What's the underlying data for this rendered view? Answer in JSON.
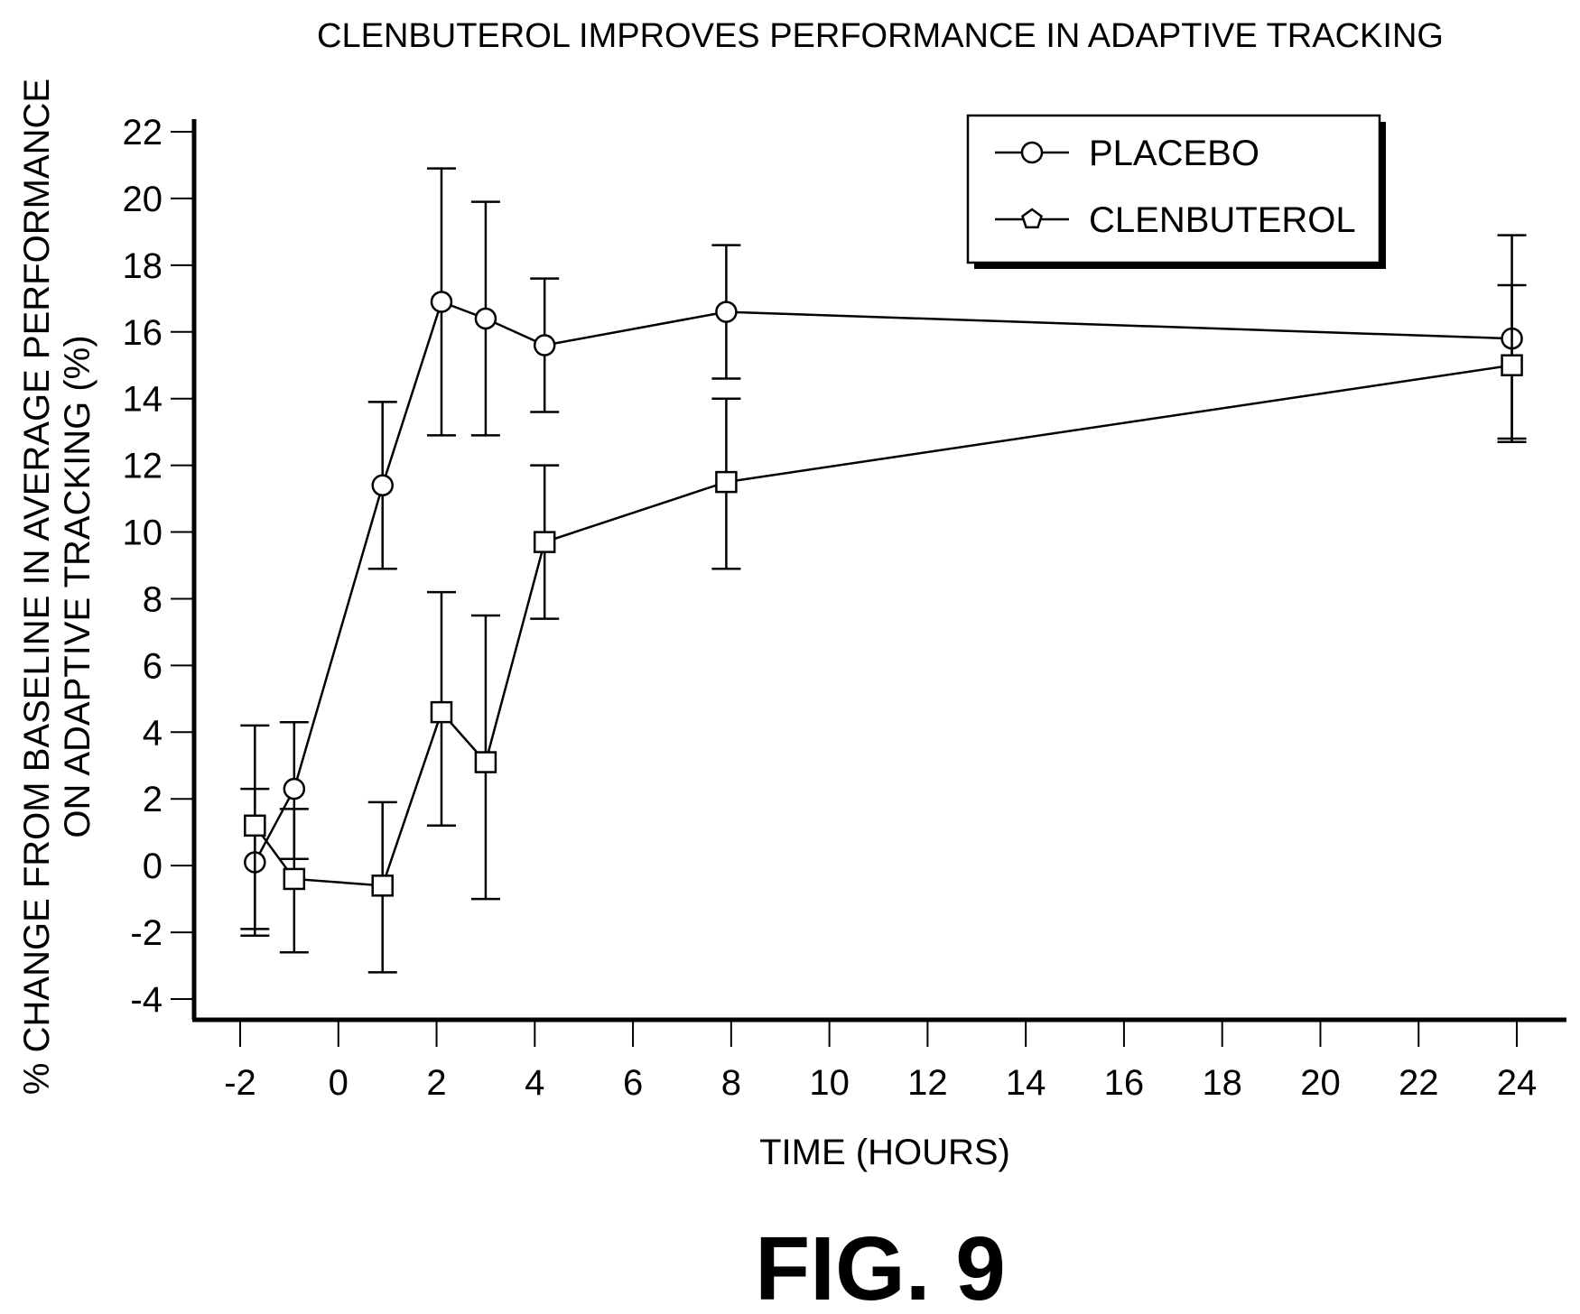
{
  "chart_data": {
    "type": "line",
    "title": "CLENBUTEROL IMPROVES PERFORMANCE IN ADAPTIVE TRACKING",
    "xlabel": "TIME (HOURS)",
    "ylabel_lines": [
      "% CHANGE FROM BASELINE IN AVERAGE PERFORMANCE",
      "ON ADAPTIVE TRACKING (%)"
    ],
    "xlim": [
      -3,
      25
    ],
    "ylim": [
      -5,
      23
    ],
    "xticks": [
      -2,
      0,
      2,
      4,
      6,
      8,
      10,
      12,
      14,
      16,
      18,
      20,
      22,
      24
    ],
    "yticks": [
      -4,
      -2,
      0,
      2,
      4,
      6,
      8,
      10,
      12,
      14,
      16,
      18,
      20,
      22
    ],
    "grid": false,
    "legend_position": "top-right",
    "series": [
      {
        "name": "PLACEBO",
        "marker": "circle",
        "x": [
          -1.7,
          -0.9,
          0.9,
          2.1,
          3.0,
          4.2,
          7.9,
          23.9
        ],
        "y": [
          0.1,
          2.3,
          11.4,
          16.9,
          16.4,
          15.6,
          16.6,
          15.8
        ],
        "error_low": [
          -2.1,
          0.2,
          8.9,
          12.9,
          12.9,
          13.6,
          14.6,
          12.7
        ],
        "error_high": [
          2.3,
          4.3,
          13.9,
          20.9,
          19.9,
          17.6,
          18.6,
          18.9
        ]
      },
      {
        "name": "CLENBUTEROL",
        "legend_marker": "pentagon",
        "marker": "square",
        "x": [
          -1.7,
          -0.9,
          0.9,
          2.1,
          3.0,
          4.2,
          7.9,
          23.9
        ],
        "y": [
          1.2,
          -0.4,
          -0.6,
          4.6,
          3.1,
          9.7,
          11.5,
          15.0
        ],
        "error_low": [
          -1.9,
          -2.6,
          -3.2,
          1.2,
          -1.0,
          7.4,
          8.9,
          12.8
        ],
        "error_high": [
          4.2,
          1.7,
          1.9,
          8.2,
          7.5,
          12.0,
          14.0,
          17.4
        ]
      }
    ]
  },
  "figure_caption": "FIG. 9"
}
